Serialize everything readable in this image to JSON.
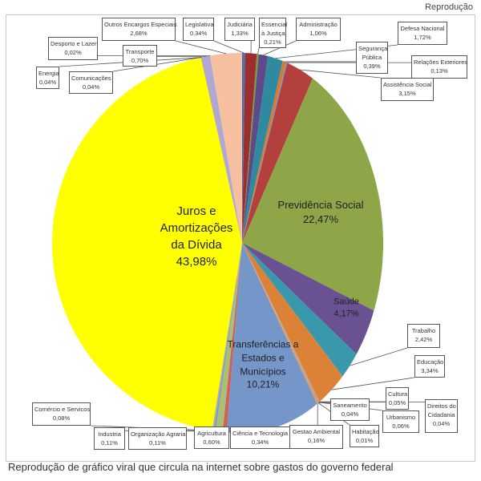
{
  "credit": "Reprodução",
  "caption": "Reprodução de gráfico viral que circula na internet sobre gastos do governo federal",
  "chart_data": {
    "type": "pie",
    "title": "",
    "unit": "%",
    "start": "12 o'clock, clockwise",
    "slices": [
      {
        "name": "Legislativa",
        "value": 0.34,
        "display": "0,34%",
        "color": "#4f6fa8"
      },
      {
        "name": "Judiciária",
        "value": 1.33,
        "display": "1,33%",
        "color": "#9b2f2f"
      },
      {
        "name": "Essencial à Justiça",
        "value": 0.21,
        "display": "0,21%",
        "color": "#7a9a3a"
      },
      {
        "name": "Administração",
        "value": 1.06,
        "display": "1,06%",
        "color": "#5e4a8a"
      },
      {
        "name": "Defesa Nacional",
        "value": 1.72,
        "display": "1,72%",
        "color": "#2f8aa0"
      },
      {
        "name": "Segurança Pública",
        "value": 0.39,
        "display": "0,39%",
        "color": "#d77a2e"
      },
      {
        "name": "Relações Exteriores",
        "value": 0.13,
        "display": "0,13%",
        "color": "#7b93c8"
      },
      {
        "name": "Assistência Social",
        "value": 3.15,
        "display": "3,15%",
        "color": "#b3403c"
      },
      {
        "name": "Previdência Social",
        "value": 22.47,
        "display": "22,47%",
        "color": "#8ea548"
      },
      {
        "name": "Saúde",
        "value": 4.17,
        "display": "4,17%",
        "color": "#6a5192"
      },
      {
        "name": "Trabalho",
        "value": 2.42,
        "display": "2,42%",
        "color": "#3a98ad"
      },
      {
        "name": "Educação",
        "value": 3.34,
        "display": "3,34%",
        "color": "#dc8236"
      },
      {
        "name": "Cultura",
        "value": 0.05,
        "display": "0,05%",
        "color": "#96aad6"
      },
      {
        "name": "Direitos da Cidadania",
        "value": 0.04,
        "display": "0,04%",
        "color": "#c9605c"
      },
      {
        "name": "Urbanismo",
        "value": 0.06,
        "display": "0,06%",
        "color": "#a9c06a"
      },
      {
        "name": "Saneamento",
        "value": 0.04,
        "display": "0,04%",
        "color": "#8a73ad"
      },
      {
        "name": "Habitação",
        "value": 0.01,
        "display": "0,01%",
        "color": "#5cb0c4"
      },
      {
        "name": "Gestao Ambiental",
        "value": 0.16,
        "display": "0,16%",
        "color": "#e89a56"
      },
      {
        "name": "Transferências a Estados e Municípios",
        "value": 10.21,
        "display": "10,21%",
        "color": "#7596c8"
      },
      {
        "name": "Ciência e Tecnologia",
        "value": 0.34,
        "display": "0,34%",
        "color": "#d0605a"
      },
      {
        "name": "Agricultura",
        "value": 0.6,
        "display": "0,60%",
        "color": "#a8c076"
      },
      {
        "name": "Organização Agraria",
        "value": 0.11,
        "display": "0,11%",
        "color": "#9886bd"
      },
      {
        "name": "Industria",
        "value": 0.11,
        "display": "0,11%",
        "color": "#66b8ca"
      },
      {
        "name": "Comércio e Serviços",
        "value": 0.08,
        "display": "0,08%",
        "color": "#eda66a"
      },
      {
        "name": "Juros e Amortizações da Dívida",
        "value": 43.98,
        "display": "43,98%",
        "color": "#ffff00"
      },
      {
        "name": "Energia",
        "value": 0.04,
        "display": "0,04%",
        "color": "#8aa2d0"
      },
      {
        "name": "Comunicações",
        "value": 0.04,
        "display": "0,04%",
        "color": "#d87c78"
      },
      {
        "name": "Transporte",
        "value": 0.7,
        "display": "0,70%",
        "color": "#b0a8d0"
      },
      {
        "name": "Desporto e Lazer",
        "value": 0.02,
        "display": "0,02%",
        "color": "#c0d08a"
      },
      {
        "name": "Outros Encargos Especiais",
        "value": 2.68,
        "display": "2,68%",
        "color": "#f6bfa0"
      }
    ],
    "inner_labels": {
      "juros": [
        "Juros e",
        "Amortizações",
        "da Dívida",
        "43,98%"
      ],
      "previdencia": [
        "Previdência Social",
        "22,47%"
      ],
      "saude": [
        "Saúde",
        "4,17%"
      ],
      "transferencias": [
        "Transferências a",
        "Estados e",
        "Municípios",
        "10,21%"
      ]
    },
    "callouts": {
      "outros": [
        "Outros Encargos Especiais",
        "2,68%"
      ],
      "legislativa": [
        "Legislativa",
        "0,34%"
      ],
      "judiciaria": [
        "Judiciária",
        "1,33%"
      ],
      "essencial": [
        "Essencial",
        "à Justiça",
        "0,21%"
      ],
      "administracao": [
        "Administração",
        "1,06%"
      ],
      "defesa": [
        "Defesa Nacional",
        "1,72%"
      ],
      "seguranca": [
        "Segurança",
        "Pública",
        "0,39%"
      ],
      "relacoes": [
        "Relações Exteriores",
        "0,13%"
      ],
      "assistencia": [
        "Assistência Social",
        "3,15%"
      ],
      "desporto": [
        "Desporto e Lazer",
        "0,02%"
      ],
      "transporte": [
        "Transporte",
        "0,70%"
      ],
      "energia": [
        "Energia",
        "0,04%"
      ],
      "comunicacoes": [
        "Comunicações",
        "0,04%"
      ],
      "trabalho": [
        "Trabalho",
        "2,42%"
      ],
      "educacao": [
        "Educação",
        "3,34%"
      ],
      "cultura": [
        "Cultura",
        "0,05%"
      ],
      "direitos": [
        "Direitos do",
        "Cidadania",
        "0,04%"
      ],
      "saneamento": [
        "Saneamento",
        "0,04%"
      ],
      "urbanismo": [
        "Urbanismo",
        "0,06%"
      ],
      "habitacao": [
        "Habitação",
        "0,01%"
      ],
      "gestao": [
        "Gestao Ambiental",
        "0,16%"
      ],
      "ciencia": [
        "Ciência e Tecnologia",
        "0,34%"
      ],
      "agricultura": [
        "Agricultura",
        "0,60%"
      ],
      "organizacao": [
        "Organização Agraria",
        "0,11%"
      ],
      "industria": [
        "Industria",
        "0,11%"
      ],
      "comercio": [
        "Comércio e Servicos",
        "0,08%"
      ]
    }
  }
}
